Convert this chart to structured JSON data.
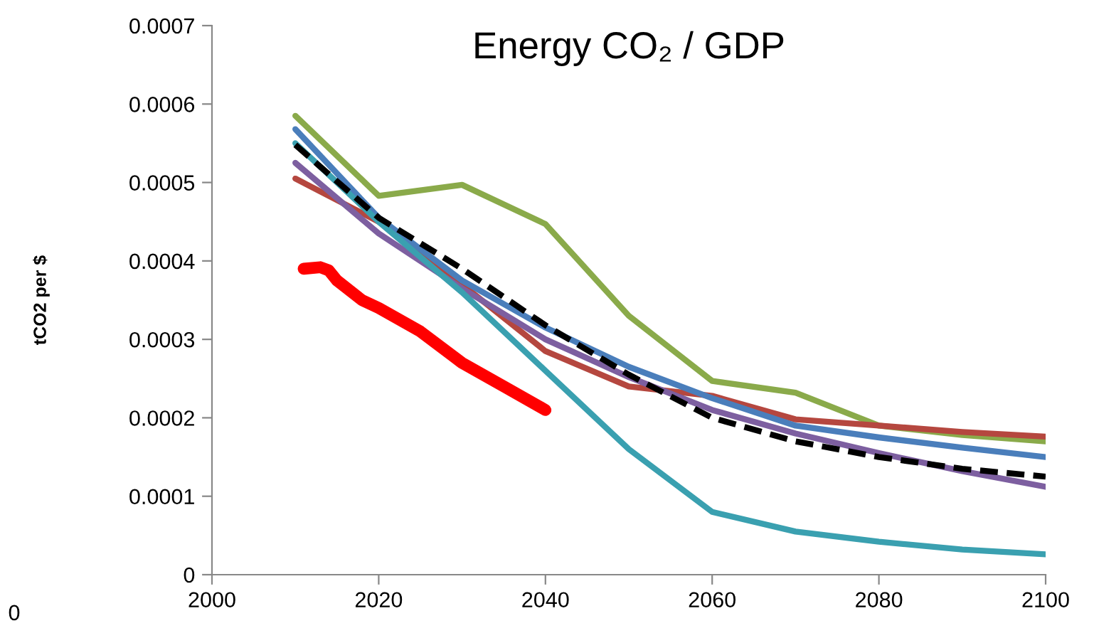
{
  "chart_data": {
    "type": "line",
    "title": "Energy CO₂ / GDP",
    "ylabel": "tCO2 per $",
    "annotations": [
      "0"
    ],
    "x": [
      2010,
      2020,
      2030,
      2040,
      2050,
      2060,
      2070,
      2080,
      2090,
      2100
    ],
    "xlim": [
      2000,
      2100
    ],
    "xticks": [
      2000,
      2020,
      2040,
      2060,
      2080,
      2100
    ],
    "ylim": [
      0,
      0.0007
    ],
    "yticks": [
      0,
      0.0001,
      0.0002,
      0.0003,
      0.0004,
      0.0005,
      0.0006,
      0.0007
    ],
    "grid": false,
    "legend": false,
    "marker": "none",
    "series": [
      {
        "color": "#8aaa4a",
        "values": [
          0.000585,
          0.000483,
          0.000497,
          0.000447,
          0.00033,
          0.000247,
          0.000232,
          0.00019,
          0.000178,
          0.00017
        ]
      },
      {
        "color": "#b5473f",
        "values": [
          0.000505,
          0.00045,
          0.00037,
          0.000285,
          0.00024,
          0.000228,
          0.000198,
          0.00019,
          0.000182,
          0.000176
        ]
      },
      {
        "color": "#4a7ebb",
        "values": [
          0.000568,
          0.000455,
          0.000375,
          0.000315,
          0.000265,
          0.000225,
          0.00019,
          0.000175,
          0.000162,
          0.00015
        ]
      },
      {
        "color": "#7d5fa0",
        "values": [
          0.000525,
          0.000435,
          0.000365,
          0.0003,
          0.000252,
          0.00021,
          0.00018,
          0.000155,
          0.000132,
          0.000112
        ]
      },
      {
        "color": "#3aa0b0",
        "values": [
          0.00055,
          0.00045,
          0.00036,
          0.00026,
          0.00016,
          8e-05,
          5.5e-05,
          4.2e-05,
          3.2e-05,
          2.6e-05
        ]
      },
      {
        "color": "#000000",
        "line_style": "dashed",
        "values": [
          0.000548,
          0.000455,
          0.00039,
          0.000318,
          0.000255,
          0.0002,
          0.00017,
          0.00015,
          0.000135,
          0.000125
        ]
      },
      {
        "color": "#ff0000",
        "x": [
          2011,
          2013,
          2014,
          2015,
          2018,
          2020,
          2025,
          2030,
          2035,
          2040
        ],
        "values": [
          0.00039,
          0.000392,
          0.000388,
          0.000375,
          0.00035,
          0.00034,
          0.00031,
          0.00027,
          0.00024,
          0.00021
        ]
      }
    ]
  }
}
